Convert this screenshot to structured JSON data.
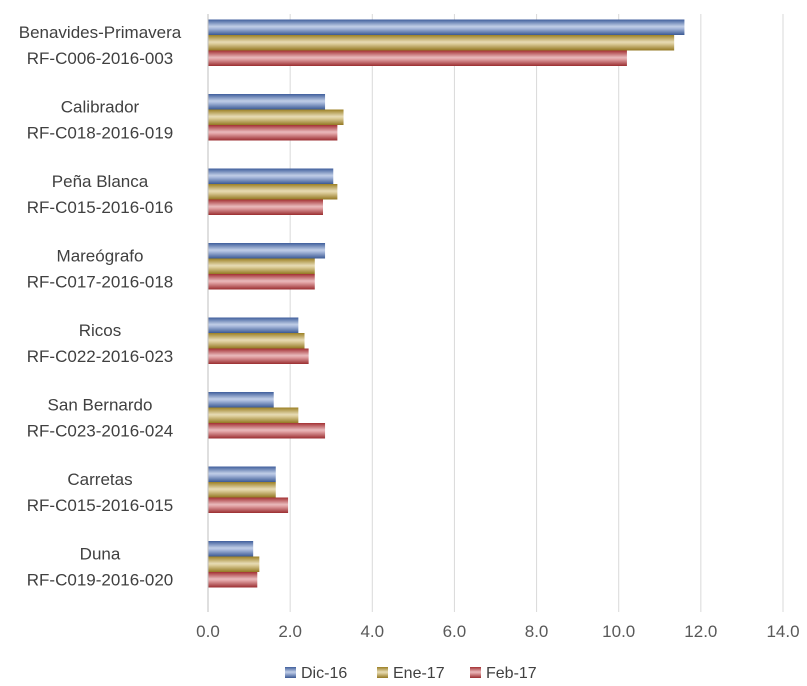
{
  "chart_data": {
    "type": "bar",
    "orientation": "horizontal",
    "categories": [
      [
        "Benavides-Primavera",
        "RF-C006-2016-003"
      ],
      [
        "Calibrador",
        "RF-C018-2016-019"
      ],
      [
        "Peña Blanca",
        "RF-C015-2016-016"
      ],
      [
        "Mareógrafo",
        "RF-C017-2016-018"
      ],
      [
        "Ricos",
        "RF-C022-2016-023"
      ],
      [
        "San Bernardo",
        "RF-C023-2016-024"
      ],
      [
        "Carretas",
        "RF-C015-2016-015"
      ],
      [
        "Duna",
        "RF-C019-2016-020"
      ]
    ],
    "series": [
      {
        "name": "Dic-16",
        "color": "#4a6fb8",
        "values": [
          11.6,
          2.85,
          3.05,
          2.85,
          2.2,
          1.6,
          1.65,
          1.1
        ]
      },
      {
        "name": "Ene-17",
        "color": "#b8962a",
        "values": [
          11.35,
          3.3,
          3.15,
          2.6,
          2.35,
          2.2,
          1.65,
          1.25
        ]
      },
      {
        "name": "Feb-17",
        "color": "#c0383c",
        "values": [
          10.2,
          3.15,
          2.8,
          2.6,
          2.45,
          2.85,
          1.95,
          1.2
        ]
      }
    ],
    "xlim": [
      0,
      14
    ],
    "xticks": [
      "0.0",
      "2.0",
      "4.0",
      "6.0",
      "8.0",
      "10.0",
      "12.0",
      "14.0"
    ],
    "grid": true,
    "legend": "bottom",
    "title": "",
    "xlabel": "",
    "ylabel": ""
  }
}
